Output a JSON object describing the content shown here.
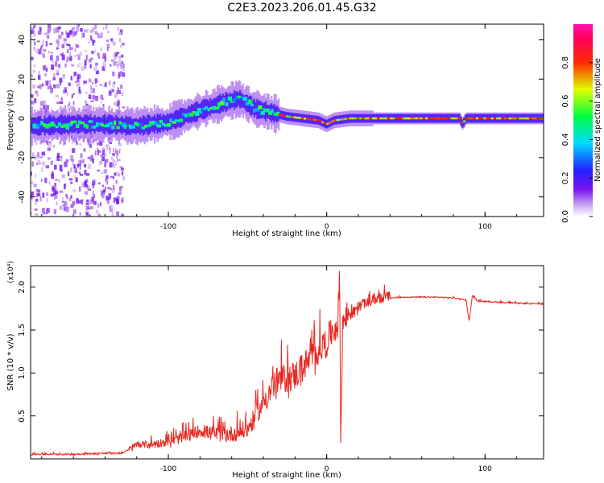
{
  "title": "C2E3.2023.206.01.45.G32",
  "chart_data": [
    {
      "type": "heatmap",
      "xlabel": "Height of straight line (km)",
      "ylabel": "Frequency (Hz)",
      "xlim": [
        -187,
        137
      ],
      "ylim": [
        -50,
        48
      ],
      "x_ticks": [
        -100,
        0,
        100
      ],
      "y_ticks": [
        -40,
        -20,
        0,
        20,
        40
      ],
      "colorbar": {
        "label": "Normalized spectral amplitude",
        "range": [
          0,
          1
        ],
        "ticks": [
          "0.0",
          "0.2",
          "0.4",
          "0.6",
          "0.8"
        ],
        "colormap": "rainbow (white-violet-blue-cyan-green-yellow-red-magenta)"
      },
      "ridge": {
        "description": "frequency of maximum amplitude along height",
        "x": [
          -187,
          -160,
          -140,
          -120,
          -100,
          -80,
          -65,
          -55,
          -45,
          -35,
          -25,
          -15,
          -5,
          0,
          5,
          15,
          30,
          60,
          84,
          86,
          88,
          90,
          100,
          137
        ],
        "y": [
          -4,
          -3,
          -3,
          -4,
          -2,
          4,
          8,
          10,
          5,
          3,
          1,
          0,
          -1,
          -3,
          -1,
          0,
          0,
          0,
          0,
          -3,
          0,
          0,
          0,
          0
        ]
      },
      "noise_region_x": [
        -187,
        -128
      ]
    },
    {
      "type": "line",
      "xlabel": "Height of straight line (km)",
      "ylabel": "SNR (10 * v/v)",
      "y_multiplier": "(x10⁴)",
      "xlim": [
        -187,
        137
      ],
      "ylim": [
        0,
        2.25
      ],
      "x_ticks": [
        -100,
        0,
        100
      ],
      "y_ticks": [
        "0.5",
        "1.0",
        "1.5",
        "2.0"
      ],
      "series": [
        {
          "color": "#e8251e",
          "x": [
            -187,
            -160,
            -140,
            -130,
            -125,
            -120,
            -110,
            -100,
            -90,
            -80,
            -70,
            -60,
            -50,
            -40,
            -35,
            -30,
            -20,
            -10,
            -5,
            0,
            3,
            5,
            7,
            8,
            9,
            10,
            12,
            15,
            20,
            30,
            40,
            50,
            60,
            70,
            80,
            88,
            90,
            92,
            95,
            100,
            110,
            120,
            137
          ],
          "y": [
            0.05,
            0.05,
            0.06,
            0.06,
            0.1,
            0.15,
            0.15,
            0.18,
            0.22,
            0.3,
            0.25,
            0.25,
            0.3,
            0.6,
            0.75,
            0.85,
            0.9,
            1.1,
            1.2,
            1.3,
            1.4,
            1.45,
            1.5,
            2.0,
            0.1,
            1.5,
            1.55,
            1.65,
            1.75,
            1.83,
            1.87,
            1.88,
            1.88,
            1.88,
            1.87,
            1.85,
            1.6,
            1.9,
            1.84,
            1.83,
            1.82,
            1.81,
            1.8
          ]
        }
      ]
    }
  ]
}
